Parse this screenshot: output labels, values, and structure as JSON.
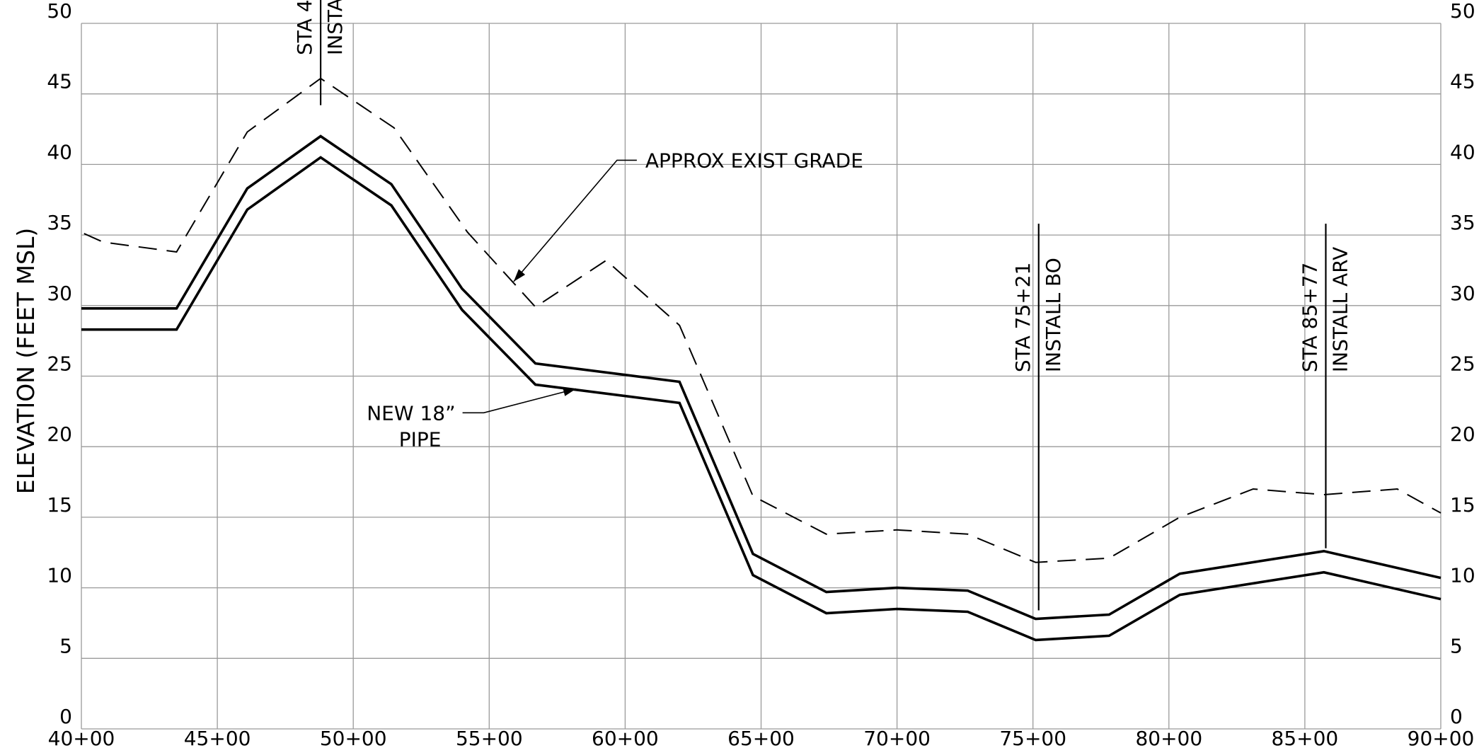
{
  "chart_data": {
    "type": "line",
    "title": "",
    "xlabel": "",
    "ylabel": "ELEVATION (FEET MSL)",
    "grid": true,
    "xlim": [
      4000,
      9000
    ],
    "ylim": [
      0,
      50
    ],
    "x_ticks": [
      {
        "value": 4000,
        "label": "40+00"
      },
      {
        "value": 4500,
        "label": "45+00"
      },
      {
        "value": 5000,
        "label": "50+00"
      },
      {
        "value": 5500,
        "label": "55+00"
      },
      {
        "value": 6000,
        "label": "60+00"
      },
      {
        "value": 6500,
        "label": "65+00"
      },
      {
        "value": 7000,
        "label": "70+00"
      },
      {
        "value": 7500,
        "label": "75+00"
      },
      {
        "value": 8000,
        "label": "80+00"
      },
      {
        "value": 8500,
        "label": "85+00"
      },
      {
        "value": 9000,
        "label": "90+00"
      }
    ],
    "y_ticks": [
      {
        "value": 0,
        "label": "0"
      },
      {
        "value": 5,
        "label": "5"
      },
      {
        "value": 10,
        "label": "10"
      },
      {
        "value": 15,
        "label": "15"
      },
      {
        "value": 20,
        "label": "20"
      },
      {
        "value": 25,
        "label": "25"
      },
      {
        "value": 30,
        "label": "30"
      },
      {
        "value": 35,
        "label": "35"
      },
      {
        "value": 40,
        "label": "40"
      },
      {
        "value": 45,
        "label": "45"
      },
      {
        "value": 50,
        "label": "50"
      }
    ],
    "series": [
      {
        "key": "existing-grade",
        "style": "dashed",
        "points": [
          [
            4010,
            35.1
          ],
          [
            4080,
            34.5
          ],
          [
            4350,
            33.8
          ],
          [
            4610,
            42.3
          ],
          [
            4880,
            46.1
          ],
          [
            5150,
            42.6
          ],
          [
            5420,
            35.2
          ],
          [
            5670,
            29.9
          ],
          [
            5930,
            33.2
          ],
          [
            6200,
            28.6
          ],
          [
            6470,
            16.5
          ],
          [
            6740,
            13.8
          ],
          [
            7000,
            14.1
          ],
          [
            7260,
            13.8
          ],
          [
            7510,
            11.8
          ],
          [
            7780,
            12.1
          ],
          [
            8040,
            15.0
          ],
          [
            8310,
            17.0
          ],
          [
            8570,
            16.6
          ],
          [
            8840,
            17.0
          ],
          [
            9000,
            15.3
          ]
        ]
      },
      {
        "key": "pipe-top",
        "style": "solid",
        "points": [
          [
            4000,
            29.8
          ],
          [
            4350,
            29.8
          ],
          [
            4610,
            38.3
          ],
          [
            4880,
            42.0
          ],
          [
            5140,
            38.6
          ],
          [
            5400,
            31.2
          ],
          [
            5670,
            25.9
          ],
          [
            6200,
            24.6
          ],
          [
            6470,
            12.4
          ],
          [
            6740,
            9.7
          ],
          [
            7000,
            10.0
          ],
          [
            7260,
            9.8
          ],
          [
            7510,
            7.8
          ],
          [
            7780,
            8.1
          ],
          [
            8040,
            11.0
          ],
          [
            8570,
            12.6
          ],
          [
            9000,
            10.7
          ]
        ]
      },
      {
        "key": "pipe-bottom",
        "style": "solid",
        "points": [
          [
            4000,
            28.3
          ],
          [
            4350,
            28.3
          ],
          [
            4610,
            36.8
          ],
          [
            4880,
            40.5
          ],
          [
            5140,
            37.1
          ],
          [
            5400,
            29.7
          ],
          [
            5670,
            24.4
          ],
          [
            6200,
            23.1
          ],
          [
            6470,
            10.9
          ],
          [
            6740,
            8.2
          ],
          [
            7000,
            8.5
          ],
          [
            7260,
            8.3
          ],
          [
            7510,
            6.3
          ],
          [
            7780,
            6.6
          ],
          [
            8040,
            9.5
          ],
          [
            8570,
            11.1
          ],
          [
            9000,
            9.2
          ]
        ]
      }
    ],
    "annotations": [
      {
        "key": "existing-grade-label",
        "lines": [
          "APPROX EXIST GRADE"
        ],
        "anchor": {
          "x": 5590,
          "y": 31.7
        },
        "text_at": {
          "x": 6040,
          "y": 40.3
        },
        "knee": {
          "x": 5970,
          "y": 40.3
        }
      },
      {
        "key": "pipe-label",
        "lines": [
          "NEW 18”",
          "PIPE"
        ],
        "anchor": {
          "x": 5820,
          "y": 24.1
        },
        "text_at": {
          "x": 5400,
          "y": 22.4
        },
        "knee": {
          "x": 5480,
          "y": 22.4
        }
      }
    ],
    "stations": [
      {
        "key": "sta-49",
        "x": 4880,
        "y_from": 44.2,
        "y_to": 54,
        "lines": [
          "STA 4",
          "INSTA"
        ]
      },
      {
        "key": "sta-75-21",
        "x": 7521,
        "y_from": 8.4,
        "y_to": 35.8,
        "lines": [
          "STA 75+21",
          "INSTALL BO"
        ]
      },
      {
        "key": "sta-85-77",
        "x": 8577,
        "y_from": 12.8,
        "y_to": 35.8,
        "lines": [
          "STA 85+77",
          "INSTALL ARV"
        ]
      }
    ]
  }
}
